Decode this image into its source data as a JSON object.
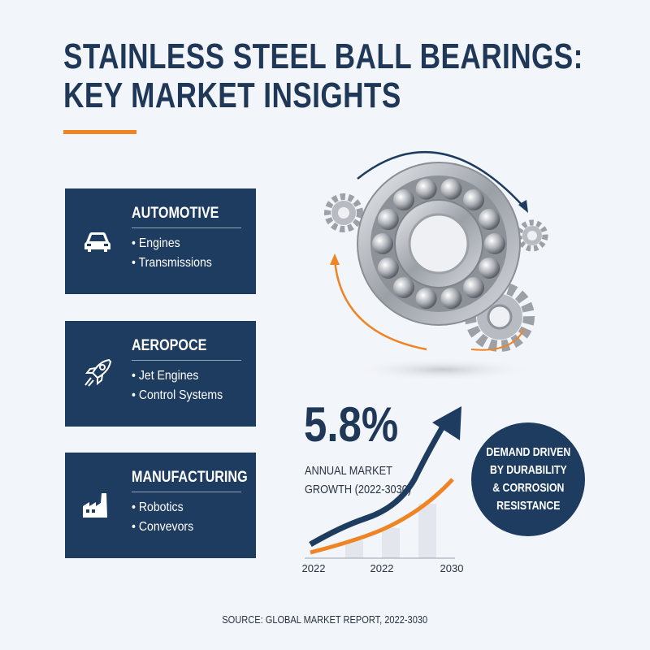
{
  "title": {
    "line1": "STAINLESS STEEL BALL BEARINGS:",
    "line2": "KEY MARKET INSIGHTS"
  },
  "colors": {
    "navy": "#1d3c5f",
    "orange": "#ef8425",
    "background": "#f2f5f9"
  },
  "sectors": [
    {
      "icon": "car-icon",
      "title": "AUTOMOTIVE",
      "items": [
        "Engines",
        "Transmissions"
      ]
    },
    {
      "icon": "rocket-icon",
      "title": "AEROPOCE",
      "items": [
        "Jet Engines",
        "Control Systems"
      ]
    },
    {
      "icon": "factory-icon",
      "title": "MANUFACTURING",
      "items": [
        "Robotics",
        "Convevors"
      ]
    }
  ],
  "growth": {
    "value": "5.8%",
    "label_line1": "ANNUAL MARKET",
    "label_line2": "GROWTH (2022-3030)",
    "x_labels": [
      "2022",
      "2022",
      "2030"
    ]
  },
  "callout": {
    "lines": [
      "DEMAND DRIVEN",
      "BY DURABILITY",
      "& CORROSION",
      "RESISTANCE"
    ]
  },
  "source": "SOURCE: GLOBAL MARKET REPORT, 2022-3030"
}
